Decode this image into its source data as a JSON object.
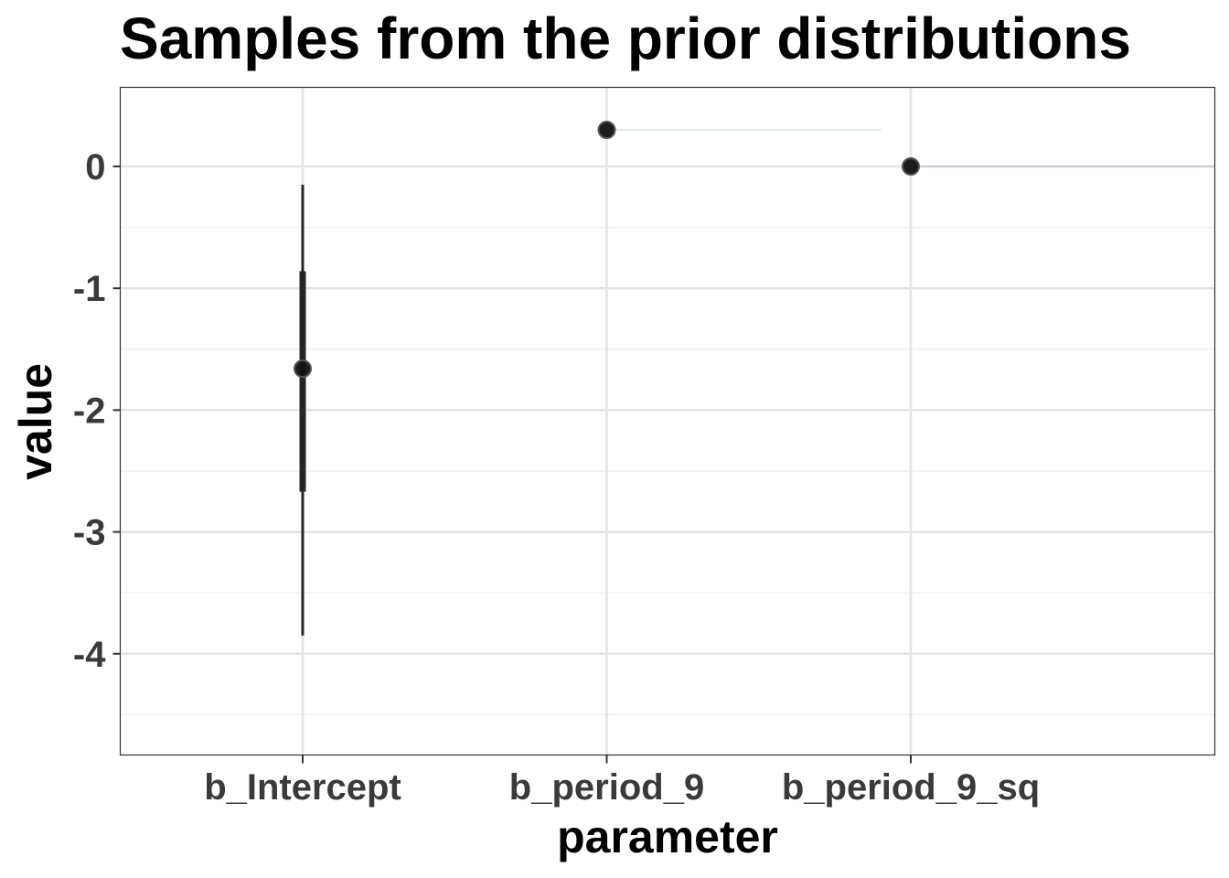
{
  "chart_data": {
    "type": "pointrange",
    "title": "Samples from the prior distributions",
    "xlabel": "parameter",
    "ylabel": "value",
    "categories": [
      "b_Intercept",
      "b_period_9",
      "b_period_9_sq"
    ],
    "ylim": [
      -4.85,
      0.65
    ],
    "yticks": [
      0,
      -1,
      -2,
      -3,
      -4
    ],
    "ytick_labels": [
      "0",
      "-1",
      "-2",
      "-3",
      "-4"
    ],
    "grid": true,
    "points": [
      {
        "category": "b_Intercept",
        "median": -1.66,
        "inner": [
          -2.67,
          -0.86
        ],
        "outer": [
          -3.85,
          -0.15
        ]
      },
      {
        "category": "b_period_9",
        "median": 0.3,
        "inner": [
          0.3,
          0.3
        ],
        "outer": [
          0.3,
          0.3
        ]
      },
      {
        "category": "b_period_9_sq",
        "median": 0.0,
        "inner": [
          0.0,
          0.0
        ],
        "outer": [
          0.0,
          0.0
        ]
      }
    ],
    "colors": {
      "panel_border": "#333333",
      "grid_major": "#e3e3e3",
      "grid_minor": "#f1f1f1",
      "interval": "#262626",
      "point": "#111111",
      "trace_b_period_9": "#7fd18a",
      "trace_b_period_9_sq": "#7fa7c9"
    }
  }
}
